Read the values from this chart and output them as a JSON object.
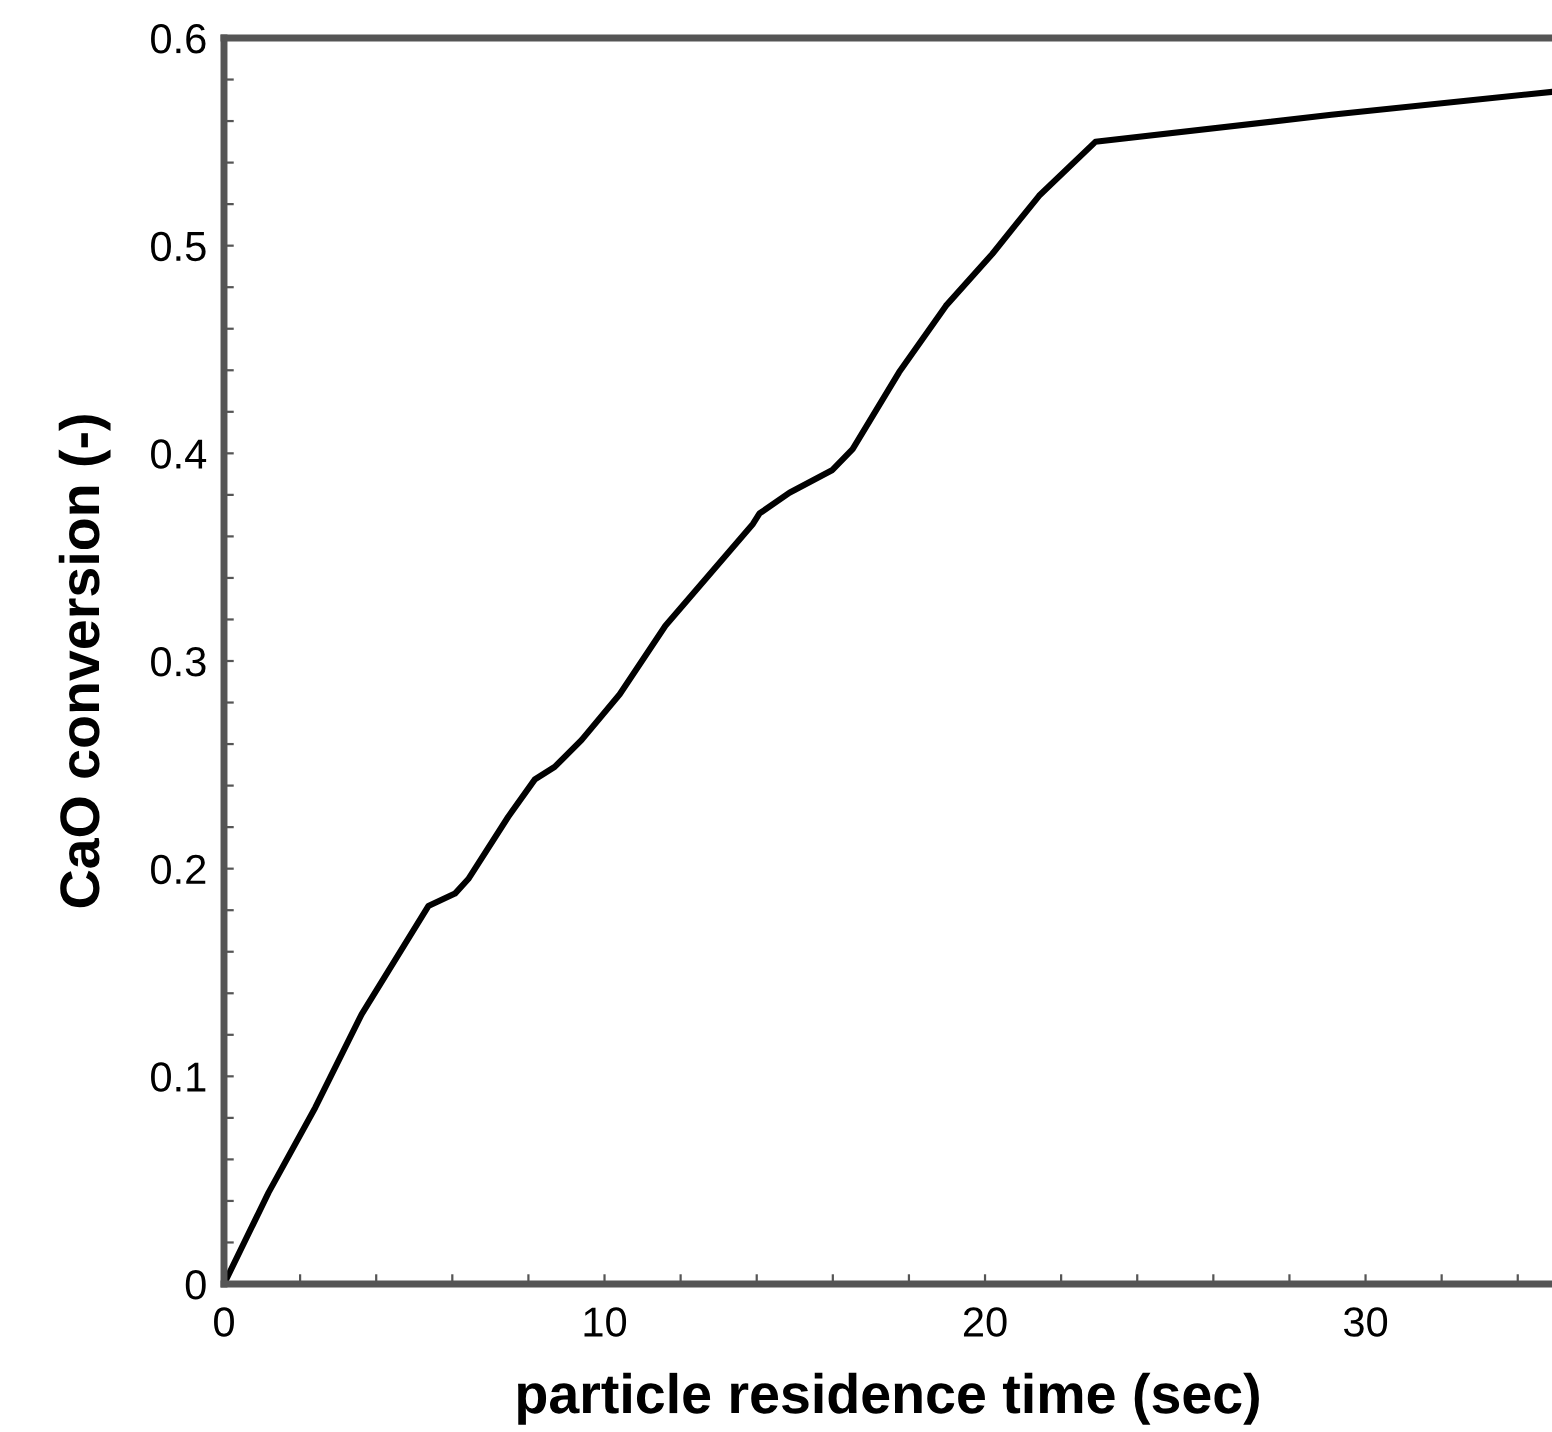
{
  "chart_data": {
    "type": "line",
    "xlabel": "particle residence time (sec)",
    "ylabel": "CaO conversion (-)",
    "x": [
      0,
      1.17,
      2.4,
      3.62,
      5.37,
      6.07,
      6.42,
      7.47,
      8.17,
      8.69,
      9.4,
      10.4,
      11.6,
      13.9,
      14.07,
      14.86,
      15.99,
      16.52,
      17.74,
      18.97,
      20.19,
      21.42,
      22.9,
      29.1,
      34.86
    ],
    "series": [
      {
        "color": "#000000",
        "values": [
          0,
          0.044,
          0.085,
          0.13,
          0.182,
          0.188,
          0.195,
          0.225,
          0.243,
          0.249,
          0.262,
          0.284,
          0.317,
          0.366,
          0.371,
          0.381,
          0.392,
          0.402,
          0.439,
          0.471,
          0.496,
          0.524,
          0.55,
          0.563,
          0.574
        ]
      }
    ],
    "xlim": [
      0,
      34.9
    ],
    "ylim": [
      0,
      0.6
    ],
    "xticks": [
      0,
      {
        "value": 2,
        "label": null
      },
      {
        "value": 4,
        "label": null
      },
      {
        "value": 6,
        "label": null
      },
      {
        "value": 8,
        "label": null
      },
      10,
      {
        "value": 12,
        "label": null
      },
      {
        "value": 14,
        "label": null
      },
      {
        "value": 16,
        "label": null
      },
      {
        "value": 18,
        "label": null
      },
      20,
      {
        "value": 22,
        "label": null
      },
      {
        "value": 24,
        "label": null
      },
      {
        "value": 26,
        "label": null
      },
      {
        "value": 28,
        "label": null
      },
      30,
      {
        "value": 32,
        "label": null
      },
      {
        "value": 34,
        "label": null
      }
    ],
    "yticks": [
      0,
      {
        "value": 0.02,
        "label": null
      },
      {
        "value": 0.04,
        "label": null
      },
      {
        "value": 0.06,
        "label": null
      },
      {
        "value": 0.08,
        "label": null
      },
      0.1,
      {
        "value": 0.12,
        "label": null
      },
      {
        "value": 0.14,
        "label": null
      },
      {
        "value": 0.16,
        "label": null
      },
      {
        "value": 0.18,
        "label": null
      },
      0.2,
      {
        "value": 0.22,
        "label": null
      },
      {
        "value": 0.24,
        "label": null
      },
      {
        "value": 0.26,
        "label": null
      },
      {
        "value": 0.28,
        "label": null
      },
      0.3,
      {
        "value": 0.32,
        "label": null
      },
      {
        "value": 0.34,
        "label": null
      },
      {
        "value": 0.36,
        "label": null
      },
      {
        "value": 0.38,
        "label": null
      },
      0.4,
      {
        "value": 0.42,
        "label": null
      },
      {
        "value": 0.44,
        "label": null
      },
      {
        "value": 0.46,
        "label": null
      },
      {
        "value": 0.48,
        "label": null
      },
      0.5,
      {
        "value": 0.52,
        "label": null
      },
      {
        "value": 0.54,
        "label": null
      },
      {
        "value": 0.56,
        "label": null
      },
      {
        "value": 0.58,
        "label": null
      },
      0.6
    ],
    "marker": "none",
    "line_style": "solid",
    "grid": false,
    "legend": false
  }
}
